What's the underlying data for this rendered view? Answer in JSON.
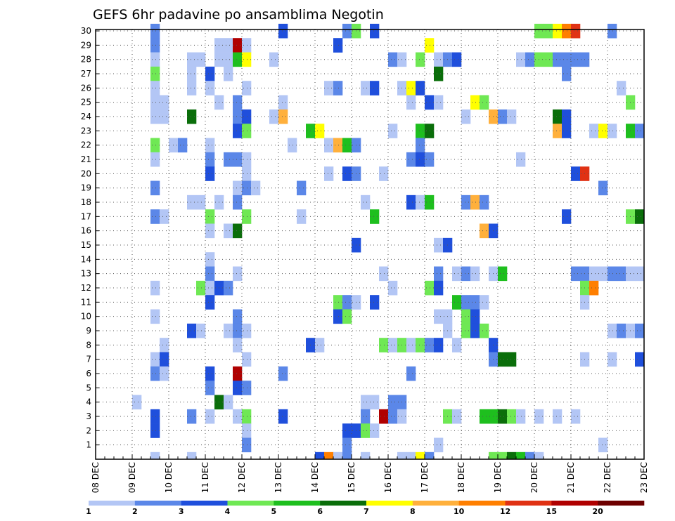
{
  "chart_data": {
    "type": "heatmap",
    "title": "GEFS 6hr padavine po ansamblima Negotin",
    "xlabel": "",
    "ylabel": "",
    "x_ticks": [
      "08 DEC",
      "09 DEC",
      "10 DEC",
      "11 DEC",
      "12 DEC",
      "13 DEC",
      "14 DEC",
      "15 DEC",
      "16 DEC",
      "17 DEC",
      "18 DEC",
      "19 DEC",
      "20 DEC",
      "21 DEC",
      "22 DEC",
      "23 DEC"
    ],
    "y_ticks": [
      "1",
      "2",
      "3",
      "4",
      "5",
      "6",
      "7",
      "8",
      "9",
      "10",
      "11",
      "12",
      "13",
      "14",
      "15",
      "16",
      "17",
      "18",
      "19",
      "20",
      "21",
      "22",
      "23",
      "24",
      "25",
      "26",
      "27",
      "28",
      "29",
      "30"
    ],
    "x_range_hours": [
      0,
      360
    ],
    "y_range": [
      0,
      30
    ],
    "time_step_hours": 6,
    "grid": "dotted",
    "colorbar": {
      "labels": [
        "1",
        "2",
        "3",
        "4",
        "5",
        "6",
        "7",
        "8",
        "10",
        "12",
        "15",
        "20"
      ],
      "colors": [
        "#b3c6f5",
        "#5b87e8",
        "#1f4fdc",
        "#6fe854",
        "#1ebf1e",
        "#0a6e0a",
        "#ffff00",
        "#ffb03c",
        "#ff7f00",
        "#e03214",
        "#b00000",
        "#6e0000"
      ]
    },
    "cells": [
      [
        30,
        6,
        2
      ],
      [
        30,
        20,
        3
      ],
      [
        30,
        27,
        2
      ],
      [
        30,
        28,
        4
      ],
      [
        30,
        30,
        3
      ],
      [
        30,
        48,
        4
      ],
      [
        30,
        49,
        4
      ],
      [
        30,
        50,
        7
      ],
      [
        30,
        51,
        10
      ],
      [
        30,
        52,
        12
      ],
      [
        30,
        56,
        2
      ],
      [
        29,
        6,
        2
      ],
      [
        29,
        13,
        1
      ],
      [
        29,
        14,
        1
      ],
      [
        29,
        15,
        15
      ],
      [
        29,
        16,
        1
      ],
      [
        29,
        26,
        3
      ],
      [
        29,
        36,
        7
      ],
      [
        28,
        6,
        1
      ],
      [
        28,
        10,
        1
      ],
      [
        28,
        11,
        1
      ],
      [
        28,
        13,
        1
      ],
      [
        28,
        14,
        1
      ],
      [
        28,
        15,
        5
      ],
      [
        28,
        16,
        7
      ],
      [
        28,
        19,
        1
      ],
      [
        28,
        32,
        2
      ],
      [
        28,
        33,
        1
      ],
      [
        28,
        35,
        4
      ],
      [
        28,
        37,
        1
      ],
      [
        28,
        38,
        2
      ],
      [
        28,
        39,
        3
      ],
      [
        28,
        46,
        1
      ],
      [
        28,
        47,
        2
      ],
      [
        28,
        48,
        4
      ],
      [
        28,
        49,
        4
      ],
      [
        28,
        50,
        2
      ],
      [
        28,
        51,
        2
      ],
      [
        28,
        52,
        2
      ],
      [
        28,
        53,
        2
      ],
      [
        27,
        6,
        4
      ],
      [
        27,
        10,
        1
      ],
      [
        27,
        12,
        3
      ],
      [
        27,
        14,
        1
      ],
      [
        27,
        37,
        6
      ],
      [
        27,
        51,
        2
      ],
      [
        26,
        6,
        1
      ],
      [
        26,
        10,
        1
      ],
      [
        26,
        12,
        1
      ],
      [
        26,
        16,
        1
      ],
      [
        26,
        25,
        1
      ],
      [
        26,
        26,
        2
      ],
      [
        26,
        29,
        1
      ],
      [
        26,
        30,
        3
      ],
      [
        26,
        33,
        1
      ],
      [
        26,
        34,
        7
      ],
      [
        26,
        35,
        3
      ],
      [
        26,
        57,
        1
      ],
      [
        25,
        6,
        1
      ],
      [
        25,
        7,
        1
      ],
      [
        25,
        13,
        1
      ],
      [
        25,
        15,
        2
      ],
      [
        25,
        20,
        1
      ],
      [
        25,
        34,
        1
      ],
      [
        25,
        36,
        3
      ],
      [
        25,
        37,
        1
      ],
      [
        25,
        41,
        7
      ],
      [
        25,
        42,
        4
      ],
      [
        25,
        58,
        4
      ],
      [
        24,
        6,
        1
      ],
      [
        24,
        7,
        1
      ],
      [
        24,
        10,
        6
      ],
      [
        24,
        15,
        2
      ],
      [
        24,
        16,
        3
      ],
      [
        24,
        19,
        1
      ],
      [
        24,
        20,
        8
      ],
      [
        24,
        40,
        1
      ],
      [
        24,
        43,
        8
      ],
      [
        24,
        44,
        2
      ],
      [
        24,
        45,
        1
      ],
      [
        24,
        50,
        6
      ],
      [
        24,
        51,
        3
      ],
      [
        23,
        15,
        3
      ],
      [
        23,
        16,
        4
      ],
      [
        23,
        23,
        5
      ],
      [
        23,
        24,
        7
      ],
      [
        23,
        32,
        1
      ],
      [
        23,
        35,
        5
      ],
      [
        23,
        36,
        6
      ],
      [
        23,
        50,
        8
      ],
      [
        23,
        51,
        3
      ],
      [
        23,
        54,
        1
      ],
      [
        23,
        55,
        7
      ],
      [
        23,
        56,
        1
      ],
      [
        23,
        58,
        5
      ],
      [
        23,
        59,
        2
      ],
      [
        22,
        6,
        4
      ],
      [
        22,
        8,
        1
      ],
      [
        22,
        9,
        2
      ],
      [
        22,
        12,
        1
      ],
      [
        22,
        21,
        1
      ],
      [
        22,
        25,
        1
      ],
      [
        22,
        26,
        8
      ],
      [
        22,
        27,
        5
      ],
      [
        22,
        28,
        2
      ],
      [
        22,
        35,
        2
      ],
      [
        21,
        6,
        1
      ],
      [
        21,
        12,
        2
      ],
      [
        21,
        14,
        2
      ],
      [
        21,
        15,
        2
      ],
      [
        21,
        16,
        1
      ],
      [
        21,
        34,
        2
      ],
      [
        21,
        35,
        3
      ],
      [
        21,
        36,
        2
      ],
      [
        21,
        46,
        1
      ],
      [
        20,
        12,
        3
      ],
      [
        20,
        16,
        1
      ],
      [
        20,
        25,
        1
      ],
      [
        20,
        27,
        3
      ],
      [
        20,
        28,
        2
      ],
      [
        20,
        31,
        1
      ],
      [
        20,
        52,
        3
      ],
      [
        20,
        53,
        12
      ],
      [
        19,
        6,
        2
      ],
      [
        19,
        15,
        1
      ],
      [
        19,
        16,
        2
      ],
      [
        19,
        17,
        1
      ],
      [
        19,
        22,
        2
      ],
      [
        19,
        55,
        2
      ],
      [
        18,
        10,
        1
      ],
      [
        18,
        11,
        1
      ],
      [
        18,
        13,
        1
      ],
      [
        18,
        15,
        2
      ],
      [
        18,
        29,
        1
      ],
      [
        18,
        34,
        3
      ],
      [
        18,
        35,
        1
      ],
      [
        18,
        36,
        5
      ],
      [
        18,
        40,
        2
      ],
      [
        18,
        41,
        8
      ],
      [
        18,
        42,
        2
      ],
      [
        17,
        6,
        2
      ],
      [
        17,
        7,
        1
      ],
      [
        17,
        12,
        4
      ],
      [
        17,
        16,
        4
      ],
      [
        17,
        22,
        1
      ],
      [
        17,
        30,
        5
      ],
      [
        17,
        51,
        3
      ],
      [
        17,
        58,
        4
      ],
      [
        17,
        59,
        6
      ],
      [
        16,
        12,
        1
      ],
      [
        16,
        14,
        1
      ],
      [
        16,
        15,
        6
      ],
      [
        16,
        42,
        8
      ],
      [
        16,
        43,
        3
      ],
      [
        15,
        28,
        3
      ],
      [
        15,
        37,
        1
      ],
      [
        15,
        38,
        3
      ],
      [
        14,
        12,
        1
      ],
      [
        13,
        12,
        2
      ],
      [
        13,
        15,
        1
      ],
      [
        13,
        31,
        1
      ],
      [
        13,
        37,
        2
      ],
      [
        13,
        39,
        1
      ],
      [
        13,
        40,
        2
      ],
      [
        13,
        41,
        1
      ],
      [
        13,
        43,
        1
      ],
      [
        13,
        44,
        5
      ],
      [
        13,
        52,
        2
      ],
      [
        13,
        53,
        2
      ],
      [
        13,
        54,
        1
      ],
      [
        13,
        55,
        1
      ],
      [
        13,
        56,
        2
      ],
      [
        13,
        57,
        2
      ],
      [
        13,
        58,
        1
      ],
      [
        13,
        59,
        1
      ],
      [
        12,
        6,
        1
      ],
      [
        12,
        11,
        4
      ],
      [
        12,
        12,
        1
      ],
      [
        12,
        13,
        3
      ],
      [
        12,
        14,
        2
      ],
      [
        12,
        32,
        1
      ],
      [
        12,
        36,
        4
      ],
      [
        12,
        37,
        3
      ],
      [
        12,
        53,
        4
      ],
      [
        12,
        54,
        10
      ],
      [
        11,
        12,
        3
      ],
      [
        11,
        26,
        4
      ],
      [
        11,
        27,
        2
      ],
      [
        11,
        28,
        1
      ],
      [
        11,
        30,
        3
      ],
      [
        11,
        39,
        5
      ],
      [
        11,
        40,
        2
      ],
      [
        11,
        41,
        2
      ],
      [
        11,
        42,
        1
      ],
      [
        11,
        53,
        1
      ],
      [
        10,
        6,
        1
      ],
      [
        10,
        15,
        2
      ],
      [
        10,
        26,
        3
      ],
      [
        10,
        27,
        4
      ],
      [
        10,
        37,
        1
      ],
      [
        10,
        38,
        1
      ],
      [
        10,
        40,
        4
      ],
      [
        10,
        41,
        3
      ],
      [
        9,
        10,
        3
      ],
      [
        9,
        11,
        1
      ],
      [
        9,
        14,
        1
      ],
      [
        9,
        15,
        2
      ],
      [
        9,
        16,
        1
      ],
      [
        9,
        38,
        1
      ],
      [
        9,
        40,
        4
      ],
      [
        9,
        41,
        3
      ],
      [
        9,
        42,
        4
      ],
      [
        9,
        56,
        1
      ],
      [
        9,
        57,
        2
      ],
      [
        9,
        58,
        1
      ],
      [
        9,
        59,
        2
      ],
      [
        8,
        7,
        1
      ],
      [
        8,
        15,
        1
      ],
      [
        8,
        23,
        3
      ],
      [
        8,
        24,
        1
      ],
      [
        8,
        31,
        4
      ],
      [
        8,
        32,
        1
      ],
      [
        8,
        33,
        4
      ],
      [
        8,
        34,
        1
      ],
      [
        8,
        35,
        4
      ],
      [
        8,
        36,
        2
      ],
      [
        8,
        37,
        3
      ],
      [
        8,
        39,
        1
      ],
      [
        8,
        43,
        3
      ],
      [
        7,
        6,
        1
      ],
      [
        7,
        7,
        3
      ],
      [
        7,
        16,
        1
      ],
      [
        7,
        43,
        2
      ],
      [
        7,
        44,
        6
      ],
      [
        7,
        45,
        6
      ],
      [
        7,
        53,
        1
      ],
      [
        7,
        56,
        1
      ],
      [
        7,
        59,
        3
      ],
      [
        6,
        6,
        2
      ],
      [
        6,
        7,
        1
      ],
      [
        6,
        12,
        3
      ],
      [
        6,
        15,
        15
      ],
      [
        6,
        20,
        2
      ],
      [
        6,
        34,
        2
      ],
      [
        5,
        12,
        2
      ],
      [
        5,
        15,
        3
      ],
      [
        5,
        16,
        2
      ],
      [
        4,
        4,
        1
      ],
      [
        4,
        13,
        6
      ],
      [
        4,
        14,
        1
      ],
      [
        4,
        29,
        1
      ],
      [
        4,
        30,
        1
      ],
      [
        4,
        32,
        2
      ],
      [
        4,
        33,
        2
      ],
      [
        3,
        6,
        3
      ],
      [
        3,
        10,
        2
      ],
      [
        3,
        12,
        1
      ],
      [
        3,
        15,
        1
      ],
      [
        3,
        16,
        4
      ],
      [
        3,
        20,
        3
      ],
      [
        3,
        29,
        2
      ],
      [
        3,
        31,
        15
      ],
      [
        3,
        32,
        2
      ],
      [
        3,
        33,
        1
      ],
      [
        3,
        38,
        4
      ],
      [
        3,
        39,
        1
      ],
      [
        3,
        42,
        5
      ],
      [
        3,
        43,
        5
      ],
      [
        3,
        44,
        6
      ],
      [
        3,
        45,
        4
      ],
      [
        3,
        46,
        1
      ],
      [
        3,
        48,
        1
      ],
      [
        3,
        50,
        1
      ],
      [
        3,
        52,
        1
      ],
      [
        2,
        6,
        3
      ],
      [
        2,
        16,
        1
      ],
      [
        2,
        27,
        3
      ],
      [
        2,
        28,
        3
      ],
      [
        2,
        29,
        4
      ],
      [
        2,
        30,
        1
      ],
      [
        1,
        16,
        2
      ],
      [
        1,
        27,
        2
      ],
      [
        1,
        37,
        1
      ],
      [
        1,
        55,
        1
      ],
      [
        0,
        6,
        1
      ],
      [
        0,
        10,
        1
      ],
      [
        0,
        24,
        3
      ],
      [
        0,
        25,
        10
      ],
      [
        0,
        26,
        1
      ],
      [
        0,
        27,
        2
      ],
      [
        0,
        29,
        1
      ],
      [
        0,
        33,
        1
      ],
      [
        0,
        34,
        1
      ],
      [
        0,
        35,
        7
      ],
      [
        0,
        36,
        2
      ],
      [
        0,
        43,
        4
      ],
      [
        0,
        44,
        4
      ],
      [
        0,
        45,
        6
      ],
      [
        0,
        46,
        5
      ],
      [
        0,
        47,
        2
      ],
      [
        0,
        48,
        1
      ]
    ]
  }
}
